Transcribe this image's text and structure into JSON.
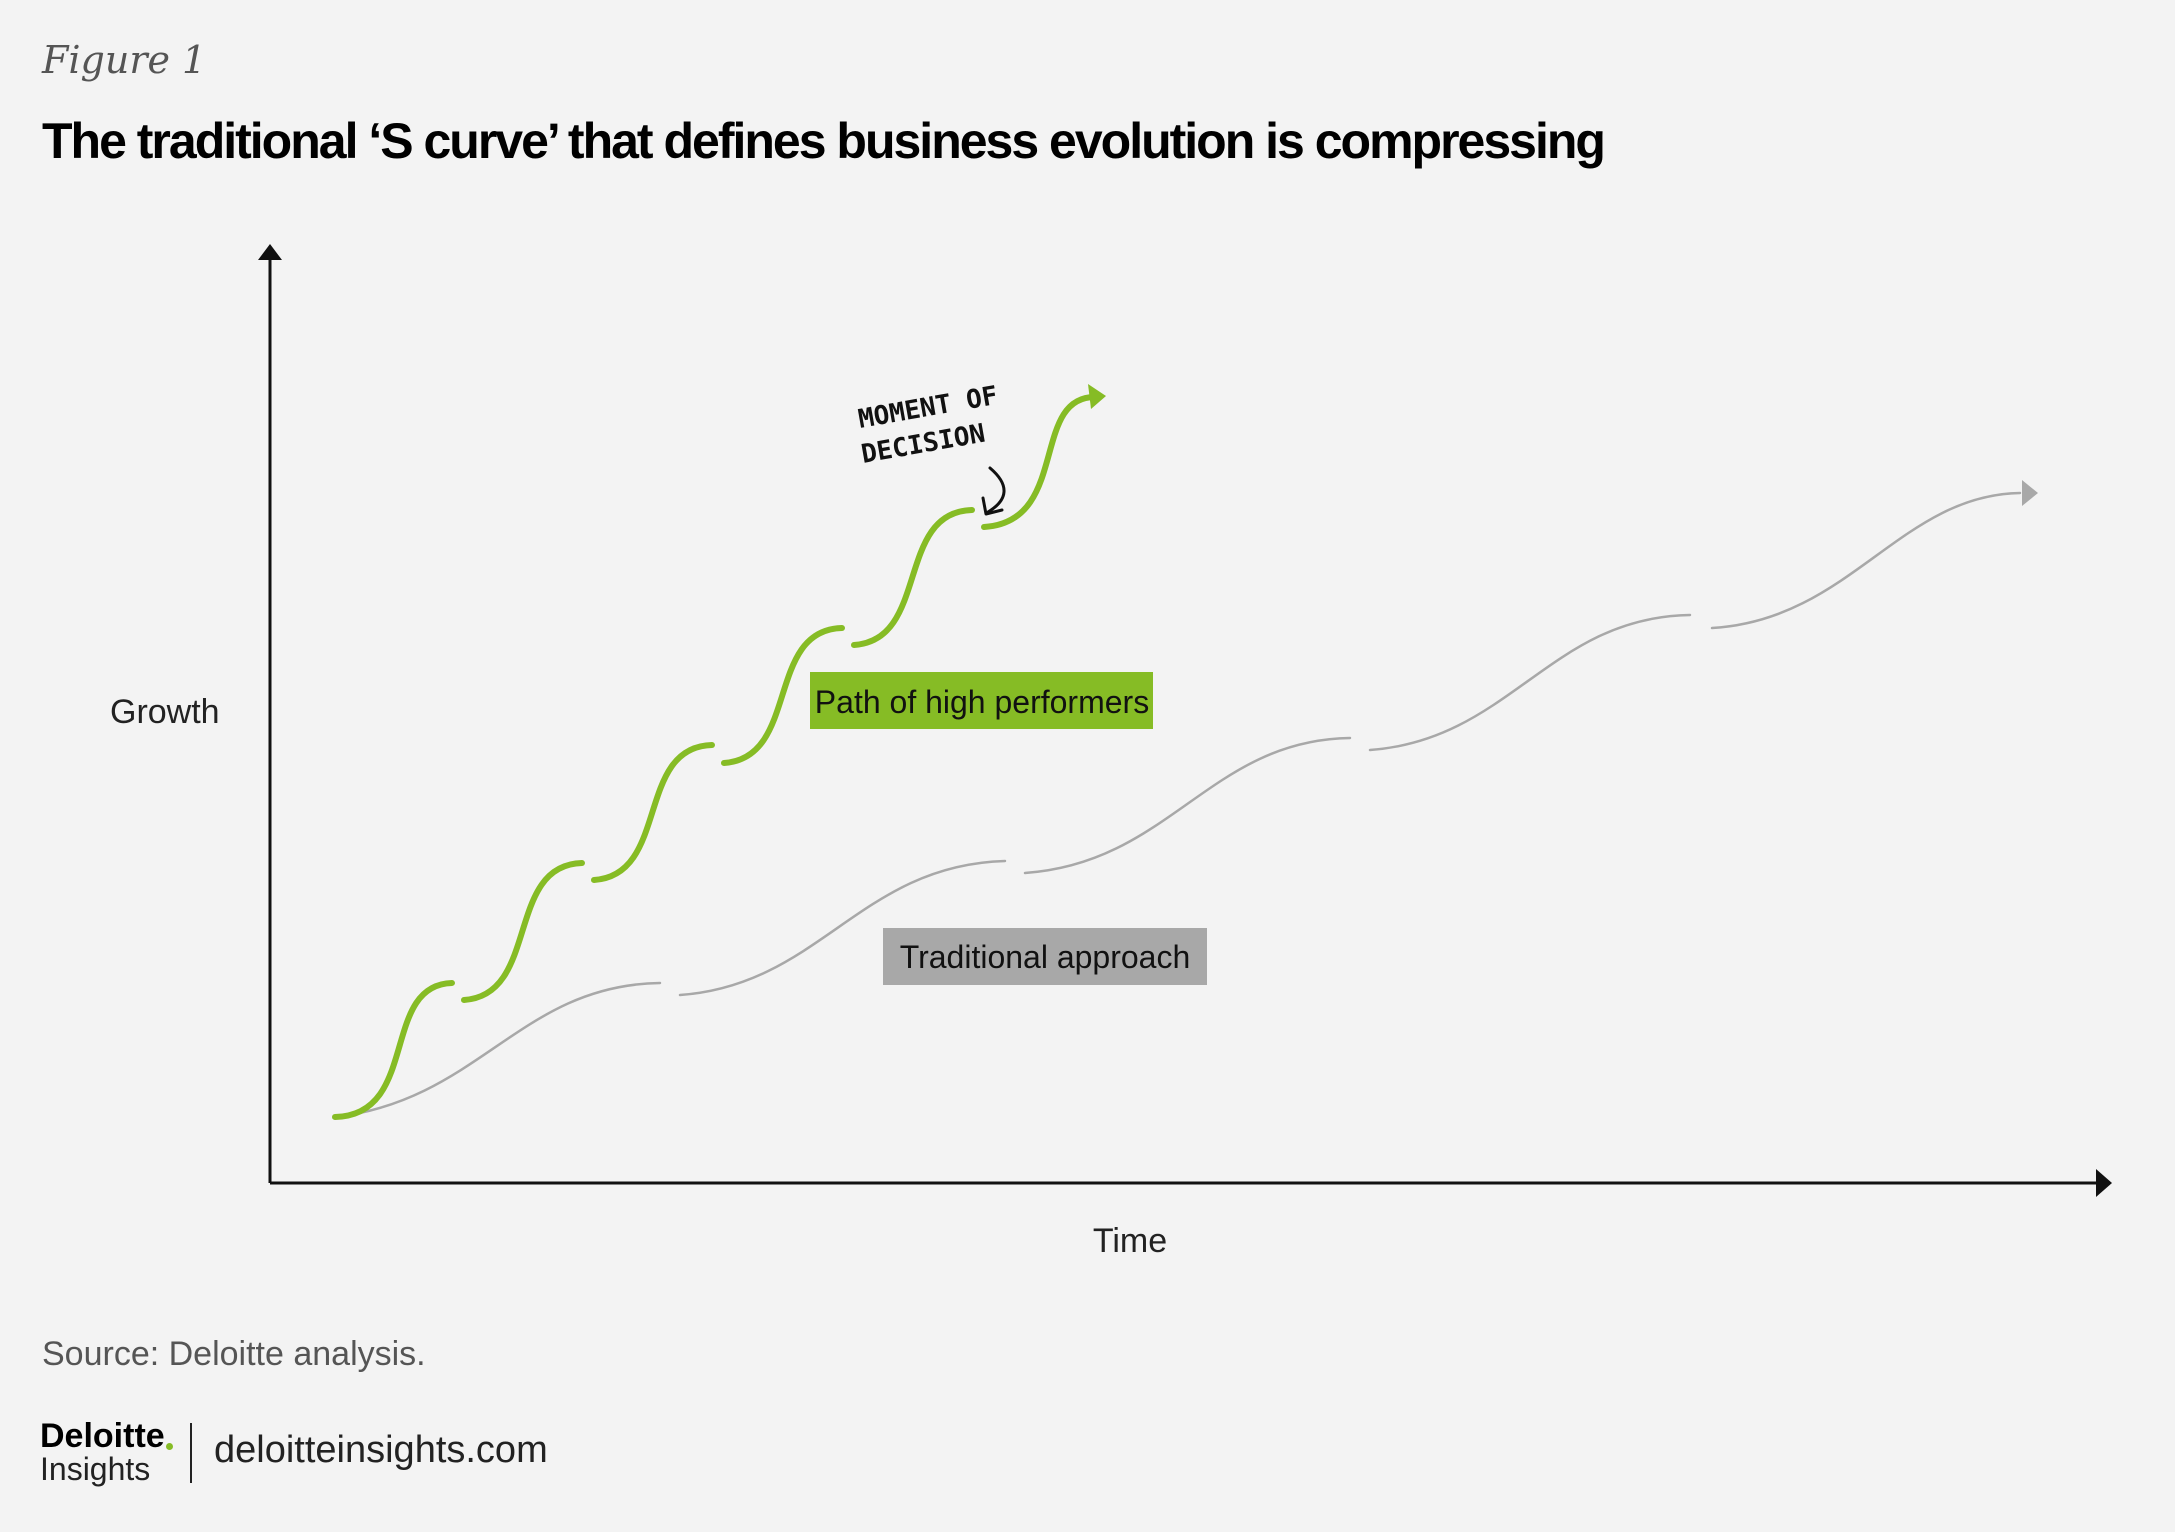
{
  "figure_label": "Figure 1",
  "title": "The traditional ‘S curve’ that defines business evolution is compressing",
  "diagram": {
    "y_axis_label": "Growth",
    "x_axis_label": "Time",
    "high_performers_label": "Path of high performers",
    "traditional_label": "Traditional approach",
    "annotation_line1": "MOMENT OF",
    "annotation_line2": "DECISION",
    "colors": {
      "high_performers": "#86bc25",
      "traditional": "#a8a8a8",
      "axis": "#111111"
    }
  },
  "source": "Source: Deloitte analysis.",
  "footer": {
    "brand_name": "Deloitte",
    "brand_sub": "Insights",
    "url": "deloitteinsights.com"
  }
}
